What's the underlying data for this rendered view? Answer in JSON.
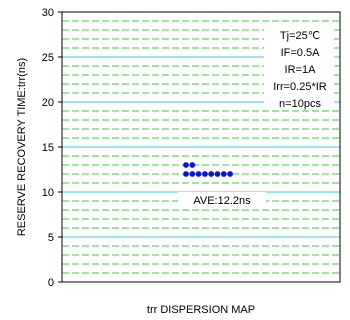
{
  "chart_data": {
    "type": "scatter",
    "title": "trr DISPERSION MAP",
    "ylabel": "RESERVE RECOVERY TIME:trr(ns)",
    "xlabel": "",
    "ylim": [
      0,
      30
    ],
    "yticks": [
      0,
      5,
      10,
      15,
      20,
      25,
      30
    ],
    "grid": true,
    "conditions": [
      "Tj=25℃",
      "IF=0.5A",
      "IR=1A",
      "Irr=0.25*IR",
      "n=10pcs"
    ],
    "average_label": "AVE:12.2ns",
    "points": [
      {
        "x": 1,
        "y": 13
      },
      {
        "x": 1,
        "y": 12
      },
      {
        "x": 2,
        "y": 13
      },
      {
        "x": 2,
        "y": 12
      },
      {
        "x": 3,
        "y": 12
      },
      {
        "x": 4,
        "y": 12
      },
      {
        "x": 5,
        "y": 12
      },
      {
        "x": 6,
        "y": 12
      },
      {
        "x": 7,
        "y": 12
      },
      {
        "x": 8,
        "y": 12
      }
    ],
    "colors": {
      "point": "#0a14d6",
      "grid_major": "#33c8e0",
      "grid_minor": "#46c04a",
      "frame": "#000000"
    }
  }
}
